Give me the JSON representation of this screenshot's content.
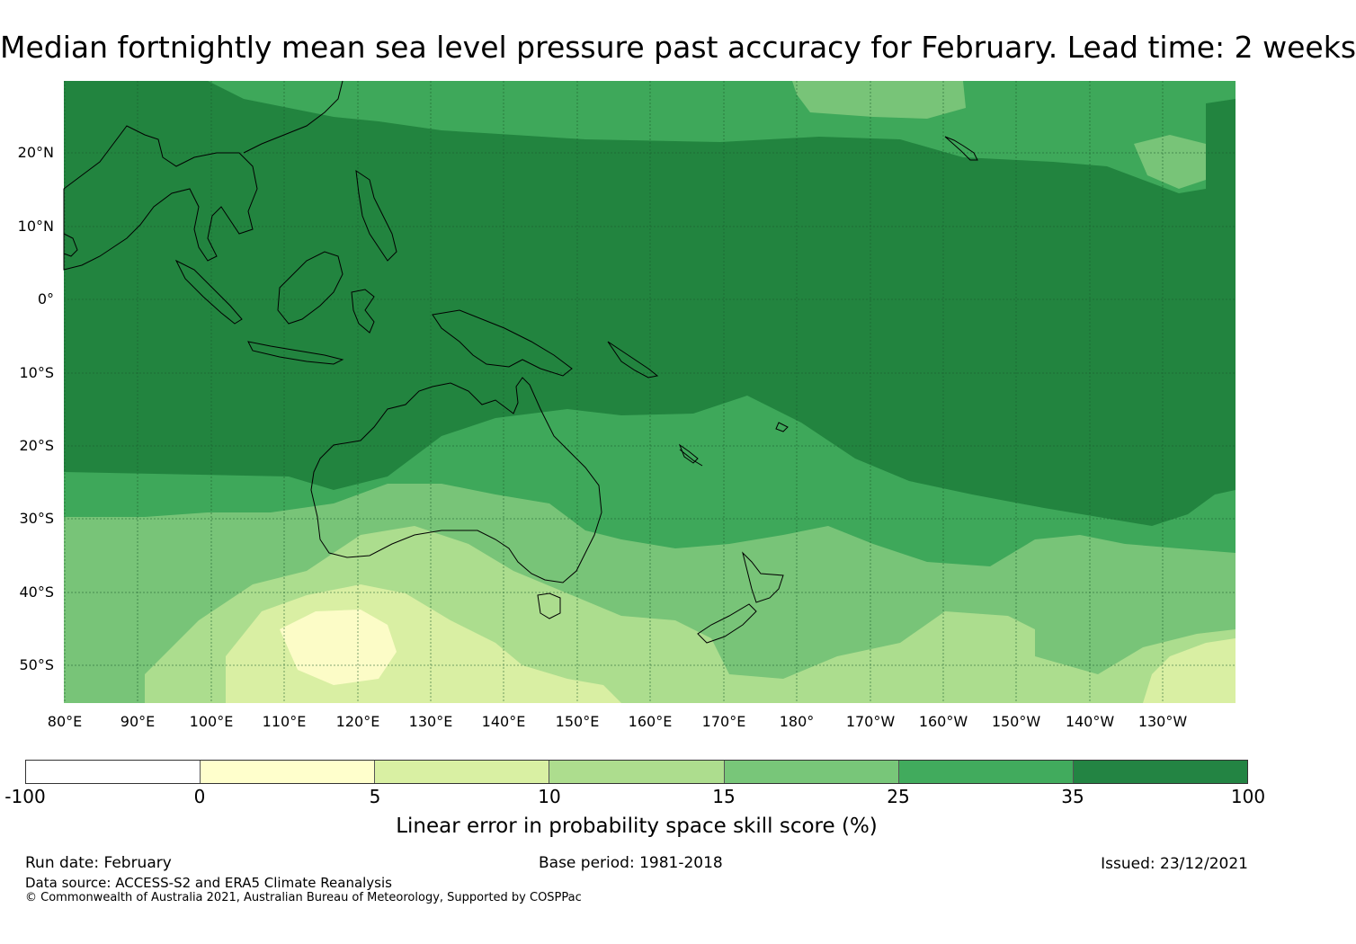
{
  "title": "Median fortnightly mean sea level pressure past accuracy for February. Lead time: 2 weeks",
  "map": {
    "lat_labels": [
      "20°N",
      "10°N",
      "0°",
      "10°S",
      "20°S",
      "30°S",
      "40°S",
      "50°S"
    ],
    "lon_labels": [
      "80°E",
      "90°E",
      "100°E",
      "110°E",
      "120°E",
      "130°E",
      "140°E",
      "150°E",
      "160°E",
      "170°E",
      "180°",
      "170°W",
      "160°W",
      "150°W",
      "140°W",
      "130°W"
    ],
    "colors": {
      "band_35_100": "#22843f",
      "band_25_35": "#3ea85a",
      "band_15_25": "#78c478",
      "band_10_15": "#acdd8e",
      "band_5_10": "#d9efa3",
      "band_0_5": "#fcfcc7",
      "land_outline": "#000000"
    }
  },
  "colorbar": {
    "colors": [
      "#ffffff",
      "#ffffcc",
      "#d9f0a3",
      "#addd8e",
      "#78c679",
      "#41ab5d",
      "#238443"
    ],
    "ticks": [
      "-100",
      "0",
      "5",
      "10",
      "15",
      "25",
      "35",
      "100"
    ],
    "label": "Linear error in probability space skill score (%)"
  },
  "footer": {
    "run_date": "Run date: February",
    "base_period": "Base period: 1981-2018",
    "issued": "Issued: 23/12/2021",
    "data_source": "Data source: ACCESS-S2 and ERA5 Climate Reanalysis",
    "copyright": "© Commonwealth of Australia 2021, Australian Bureau of Meteorology, Supported by COSPPac"
  }
}
